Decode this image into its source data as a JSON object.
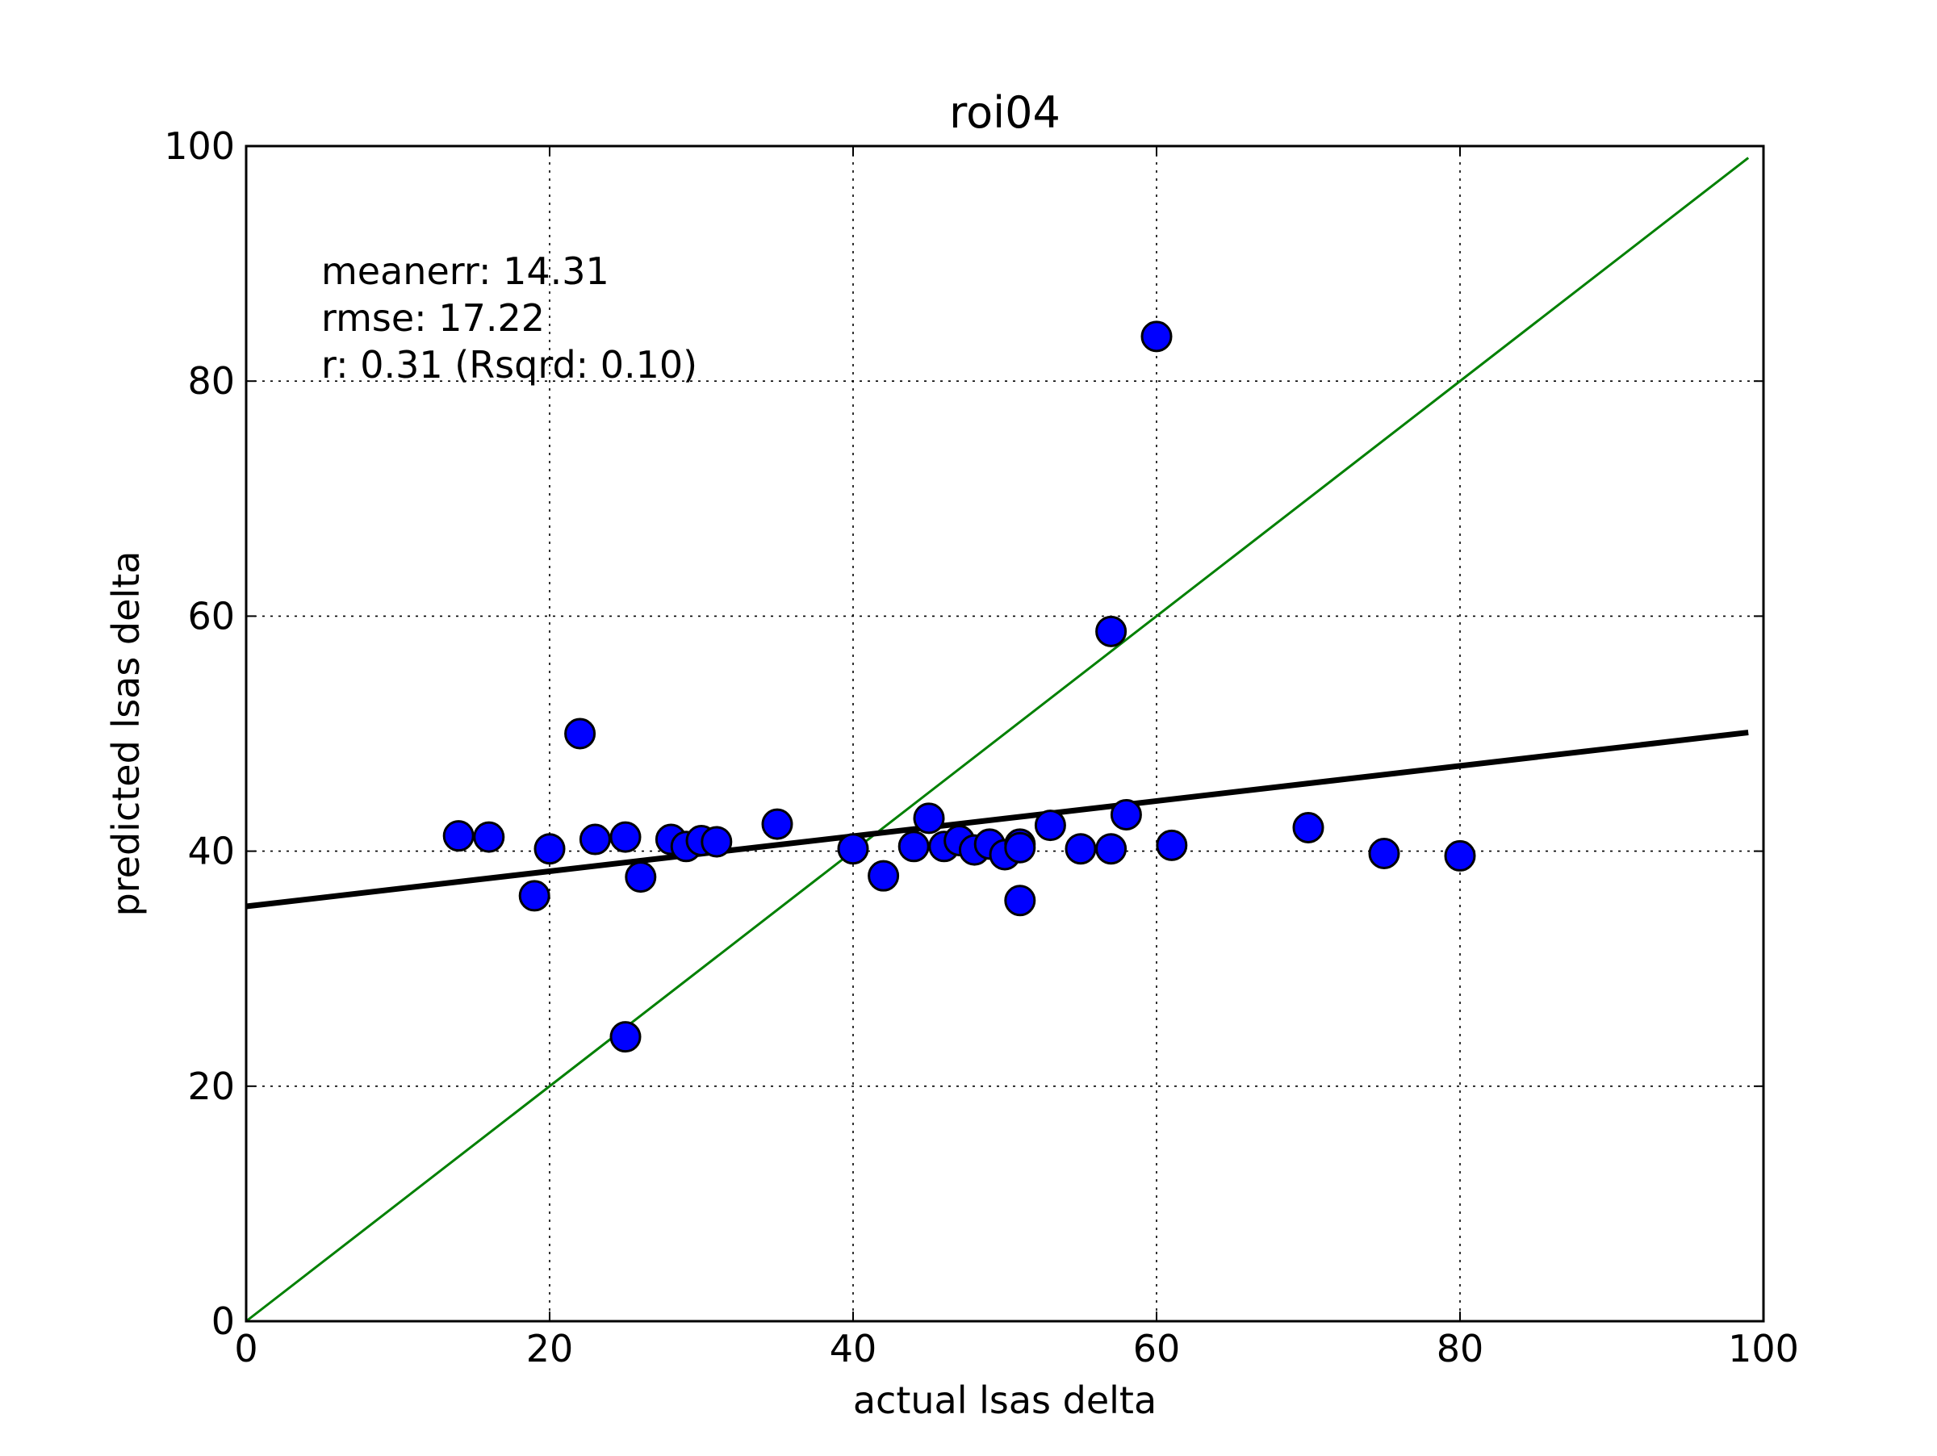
{
  "chart_data": {
    "type": "scatter",
    "title": "roi04",
    "xlabel": "actual lsas delta",
    "ylabel": "predicted lsas delta",
    "xlim": [
      0,
      100
    ],
    "ylim": [
      0,
      100
    ],
    "x_ticks": [
      0,
      20,
      40,
      60,
      80,
      100
    ],
    "y_ticks": [
      0,
      20,
      40,
      60,
      80,
      100
    ],
    "x_tick_labels": [
      "0",
      "20",
      "40",
      "60",
      "80",
      "100"
    ],
    "y_tick_labels": [
      "0",
      "20",
      "40",
      "60",
      "80",
      "100"
    ],
    "grid": true,
    "annotations": [
      "meanerr: 14.31",
      "rmse: 17.22",
      "r: 0.31 (Rsqrd: 0.10)"
    ],
    "points": {
      "color": "#0000ff",
      "x": [
        14,
        16,
        19,
        20,
        22,
        23,
        25,
        25,
        26,
        28,
        29,
        30,
        31,
        35,
        40,
        42,
        44,
        45,
        46,
        47,
        48,
        49,
        50,
        51,
        51,
        51,
        53,
        55,
        57,
        57,
        58,
        60,
        61,
        70,
        75,
        80
      ],
      "y": [
        41.3,
        41.2,
        36.2,
        40.2,
        50.0,
        41.0,
        41.2,
        24.2,
        37.8,
        41.0,
        40.4,
        40.9,
        40.8,
        42.3,
        40.2,
        37.9,
        40.4,
        42.8,
        40.4,
        40.9,
        40.1,
        40.6,
        39.7,
        40.6,
        40.3,
        35.8,
        42.2,
        40.2,
        58.7,
        40.2,
        43.1,
        83.8,
        40.5,
        42.0,
        39.8,
        39.6
      ]
    },
    "identity_line": {
      "color": "#008000",
      "x": [
        0,
        99
      ],
      "y": [
        0,
        99
      ]
    },
    "fit_line": {
      "color": "#000000",
      "x": [
        0,
        99
      ],
      "y": [
        35.3,
        50.1
      ]
    }
  }
}
